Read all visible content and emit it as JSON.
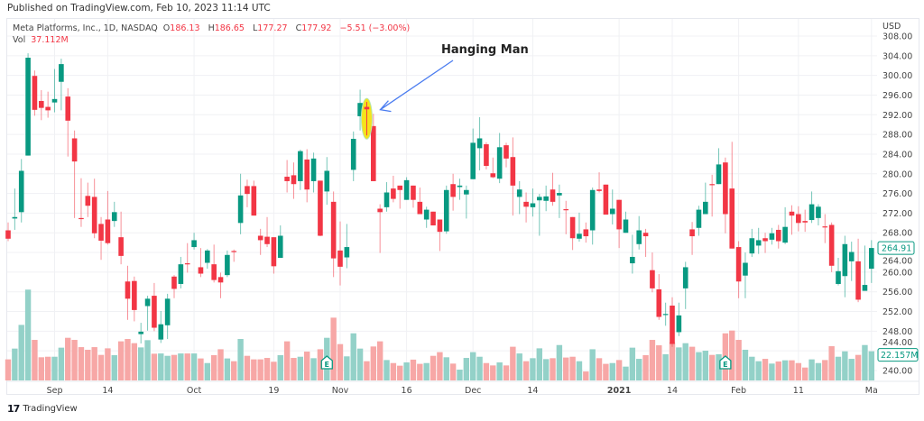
{
  "header": {
    "published": "Published on TradingView.com, Feb 10, 2023 11:14 UTC"
  },
  "legend": {
    "symbol": "Meta Platforms, Inc., 1D, NASDAQ",
    "o_label": "O",
    "o": "186.13",
    "h_label": "H",
    "h": "186.65",
    "l_label": "L",
    "l": "177.27",
    "c_label": "C",
    "c": "177.92",
    "change": "−5.51 (−3.00%)",
    "vol_label": "Vol",
    "vol": "37.112M"
  },
  "annotation": {
    "text": "Hanging Man",
    "arrow_color": "#4a7cf0",
    "highlight_color": "#f5e31a"
  },
  "footer": {
    "brand": "TradingView",
    "logo": "17"
  },
  "earnings_marker": "E",
  "colors": {
    "up": "#089981",
    "down": "#f23645",
    "vol_up": "#93d1c8",
    "vol_down": "#f7a7a6",
    "grid": "#f0f1f4"
  },
  "chart_data": {
    "type": "candlestick",
    "title": "",
    "currency": "USD",
    "ylim": [
      240,
      308
    ],
    "y_ticks": [
      "308.00",
      "304.00",
      "300.00",
      "296.00",
      "292.00",
      "288.00",
      "284.00",
      "280.00",
      "276.00",
      "272.00",
      "268.00",
      "264.00",
      "260.00",
      "256.00",
      "252.00",
      "248.00",
      "244.00",
      "240.00"
    ],
    "x_tick_labels": [
      "Sep",
      "14",
      "Oct",
      "19",
      "Nov",
      "16",
      "Dec",
      "14",
      "2021",
      "14",
      "Feb",
      "11",
      "Ma"
    ],
    "last_price_label": "264.91",
    "last_volume_label": "22.157M",
    "grid": true,
    "fields": [
      "open",
      "high",
      "low",
      "close",
      "volume_millions"
    ],
    "bars": [
      [
        268.5,
        270.1,
        266.3,
        266.8,
        16.0
      ],
      [
        270.9,
        277.0,
        268.6,
        271.2,
        24.2
      ],
      [
        272.2,
        283.0,
        270.1,
        280.6,
        42.2
      ],
      [
        283.7,
        304.5,
        283.7,
        303.6,
        69.0
      ],
      [
        299.9,
        301.0,
        291.8,
        293.0,
        30.8
      ],
      [
        294.8,
        297.0,
        290.9,
        293.4,
        17.6
      ],
      [
        293.6,
        296.7,
        291.4,
        292.9,
        18.0
      ],
      [
        294.5,
        301.3,
        292.5,
        295.2,
        18.0
      ],
      [
        298.7,
        303.4,
        292.9,
        302.3,
        24.9
      ],
      [
        295.7,
        297.4,
        283.5,
        290.8,
        32.4
      ],
      [
        287.2,
        288.8,
        271.0,
        282.5,
        30.8
      ],
      [
        271.0,
        279.1,
        269.2,
        270.9,
        25.3
      ],
      [
        275.5,
        278.2,
        271.2,
        273.5,
        23.3
      ],
      [
        275.3,
        279.0,
        266.9,
        267.9,
        25.3
      ],
      [
        269.8,
        271.2,
        262.5,
        266.4,
        19.4
      ],
      [
        270.7,
        276.5,
        265.6,
        265.9,
        24.4
      ],
      [
        270.4,
        274.3,
        269.2,
        272.2,
        19.2
      ],
      [
        267.1,
        272.3,
        261.6,
        263.3,
        29.7
      ],
      [
        258.1,
        261.3,
        250.3,
        254.6,
        31.5
      ],
      [
        258.2,
        259.1,
        250.0,
        252.3,
        28.3
      ],
      [
        247.4,
        249.7,
        245.5,
        247.9,
        25.1
      ],
      [
        253.1,
        255.2,
        248.1,
        254.6,
        30.6
      ],
      [
        255.2,
        257.8,
        248.0,
        248.7,
        20.3
      ],
      [
        246.3,
        252.1,
        245.6,
        249.4,
        20.5
      ],
      [
        249.2,
        255.6,
        246.4,
        254.6,
        18.7
      ],
      [
        259.1,
        259.4,
        254.7,
        256.6,
        19.4
      ],
      [
        257.6,
        263.1,
        256.7,
        261.6,
        20.5
      ],
      [
        261.8,
        265.9,
        259.9,
        261.7,
        20.5
      ],
      [
        265.1,
        268.0,
        264.6,
        266.5,
        20.5
      ],
      [
        261.0,
        264.9,
        259.0,
        259.7,
        16.7
      ],
      [
        261.9,
        264.7,
        260.7,
        264.4,
        13.2
      ],
      [
        261.6,
        265.6,
        257.9,
        258.4,
        19.2
      ],
      [
        259.0,
        259.9,
        254.7,
        257.9,
        23.7
      ],
      [
        259.4,
        264.4,
        259.0,
        263.5,
        16.7
      ],
      [
        264.3,
        264.6,
        262.1,
        264.2,
        14.6
      ],
      [
        270.0,
        280.0,
        267.7,
        275.6,
        31.5
      ],
      [
        277.5,
        278.8,
        273.2,
        275.9,
        18.7
      ],
      [
        277.5,
        278.6,
        271.5,
        271.5,
        16.0
      ],
      [
        267.4,
        268.8,
        263.5,
        266.5,
        16.0
      ],
      [
        267.2,
        271.2,
        265.1,
        265.7,
        17.1
      ],
      [
        267.1,
        267.1,
        259.7,
        261.2,
        14.2
      ],
      [
        262.9,
        269.5,
        262.9,
        267.4,
        19.2
      ],
      [
        279.4,
        282.8,
        276.2,
        278.5,
        29.7
      ],
      [
        279.7,
        282.3,
        274.9,
        277.9,
        17.1
      ],
      [
        278.5,
        284.9,
        276.7,
        284.6,
        18.0
      ],
      [
        282.9,
        285.0,
        274.2,
        276.8,
        21.9
      ],
      [
        278.5,
        284.3,
        276.2,
        283.1,
        16.9
      ],
      [
        278.6,
        278.6,
        267.3,
        267.4,
        23.7
      ],
      [
        276.4,
        283.4,
        273.7,
        280.6,
        32.4
      ],
      [
        274.3,
        276.4,
        259.0,
        262.8,
        47.7
      ],
      [
        264.4,
        270.3,
        257.3,
        261.1,
        27.6
      ],
      [
        263.0,
        269.8,
        260.8,
        265.1,
        18.3
      ],
      [
        280.8,
        288.6,
        278.5,
        287.1,
        35.8
      ],
      [
        291.7,
        297.1,
        288.8,
        294.4,
        24.2
      ],
      [
        293.6,
        294.6,
        287.8,
        293.1,
        14.6
      ],
      [
        289.7,
        292.2,
        278.5,
        278.5,
        25.8
      ],
      [
        272.9,
        273.8,
        263.9,
        272.2,
        29.7
      ],
      [
        273.2,
        278.3,
        272.3,
        276.2,
        15.5
      ],
      [
        277.0,
        279.6,
        274.2,
        274.9,
        13.2
      ],
      [
        277.6,
        277.6,
        272.9,
        276.7,
        11.2
      ],
      [
        274.7,
        279.3,
        274.7,
        278.7,
        13.7
      ],
      [
        277.6,
        277.6,
        273.1,
        274.7,
        15.8
      ],
      [
        274.3,
        277.2,
        271.8,
        271.8,
        12.6
      ],
      [
        270.7,
        273.3,
        269.0,
        272.7,
        13.2
      ],
      [
        272.3,
        272.3,
        269.5,
        269.5,
        18.7
      ],
      [
        270.7,
        270.7,
        264.3,
        268.2,
        21.5
      ],
      [
        268.3,
        277.6,
        267.8,
        276.7,
        17.6
      ],
      [
        277.9,
        280.0,
        272.5,
        275.3,
        12.8
      ],
      [
        277.3,
        279.0,
        274.7,
        277.6,
        8.2
      ],
      [
        275.8,
        277.6,
        270.9,
        276.7,
        17.1
      ],
      [
        278.9,
        289.2,
        278.9,
        286.3,
        21.5
      ],
      [
        285.2,
        291.5,
        280.7,
        287.2,
        18.0
      ],
      [
        286.0,
        286.4,
        280.9,
        281.6,
        13.2
      ],
      [
        280.1,
        283.3,
        279.1,
        279.3,
        11.4
      ],
      [
        279.0,
        288.3,
        278.1,
        285.4,
        13.7
      ],
      [
        285.8,
        286.3,
        281.3,
        283.1,
        11.4
      ],
      [
        283.4,
        287.4,
        271.5,
        277.6,
        25.6
      ],
      [
        275.3,
        278.5,
        271.8,
        276.8,
        20.5
      ],
      [
        274.3,
        276.2,
        270.1,
        273.3,
        14.6
      ],
      [
        273.2,
        277.0,
        271.3,
        274.0,
        16.9
      ],
      [
        274.6,
        275.9,
        267.4,
        275.3,
        24.4
      ],
      [
        274.5,
        277.6,
        272.4,
        275.4,
        16.2
      ],
      [
        276.8,
        280.2,
        273.5,
        274.3,
        16.9
      ],
      [
        275.6,
        277.8,
        271.0,
        276.1,
        26.9
      ],
      [
        272.8,
        274.5,
        267.7,
        272.6,
        17.4
      ],
      [
        271.2,
        271.2,
        264.5,
        266.9,
        18.0
      ],
      [
        266.8,
        272.1,
        266.2,
        267.8,
        14.6
      ],
      [
        268.7,
        270.1,
        266.0,
        267.3,
        6.8
      ],
      [
        268.5,
        277.2,
        265.6,
        276.7,
        23.7
      ],
      [
        276.8,
        280.3,
        276.2,
        276.5,
        16.9
      ],
      [
        277.8,
        277.8,
        271.7,
        271.7,
        12.6
      ],
      [
        271.8,
        276.8,
        269.7,
        272.9,
        13.2
      ],
      [
        274.7,
        274.7,
        264.9,
        268.7,
        15.5
      ],
      [
        268.0,
        272.3,
        268.0,
        270.7,
        10.5
      ],
      [
        261.8,
        267.6,
        259.7,
        263.1,
        24.9
      ],
      [
        265.7,
        271.4,
        264.6,
        268.5,
        16.4
      ],
      [
        268.0,
        268.8,
        263.1,
        267.3,
        19.2
      ],
      [
        260.4,
        264.0,
        255.9,
        256.7,
        30.8
      ],
      [
        256.5,
        259.6,
        250.3,
        250.9,
        26.7
      ],
      [
        251.4,
        253.8,
        249.1,
        251.5,
        19.9
      ],
      [
        253.2,
        254.9,
        244.8,
        245.4,
        29.0
      ],
      [
        247.8,
        253.8,
        247.0,
        251.2,
        25.1
      ],
      [
        256.7,
        262.1,
        252.5,
        261.0,
        28.3
      ],
      [
        268.7,
        270.2,
        263.5,
        267.3,
        25.6
      ],
      [
        269.0,
        273.5,
        267.4,
        272.7,
        21.5
      ],
      [
        271.8,
        278.2,
        271.8,
        274.3,
        22.6
      ],
      [
        277.9,
        279.8,
        271.3,
        277.8,
        19.4
      ],
      [
        277.9,
        285.2,
        277.9,
        281.9,
        19.9
      ],
      [
        282.3,
        283.3,
        267.9,
        271.8,
        35.8
      ],
      [
        277.0,
        286.5,
        264.8,
        264.8,
        37.9
      ],
      [
        265.1,
        266.3,
        254.7,
        258.1,
        30.8
      ],
      [
        259.3,
        264.0,
        254.7,
        261.9,
        23.3
      ],
      [
        263.8,
        268.8,
        263.1,
        266.9,
        18.0
      ],
      [
        265.4,
        269.0,
        263.7,
        266.5,
        14.6
      ],
      [
        266.9,
        268.0,
        263.9,
        266.3,
        16.4
      ],
      [
        266.6,
        269.0,
        265.6,
        267.9,
        12.8
      ],
      [
        268.6,
        269.6,
        264.8,
        266.3,
        14.4
      ],
      [
        266.0,
        273.2,
        265.7,
        269.2,
        15.3
      ],
      [
        272.3,
        273.6,
        267.6,
        271.5,
        15.3
      ],
      [
        271.8,
        273.4,
        268.3,
        270.0,
        13.2
      ],
      [
        270.4,
        272.7,
        268.2,
        270.1,
        9.8
      ],
      [
        270.6,
        276.4,
        270.0,
        273.8,
        16.0
      ],
      [
        271.0,
        273.8,
        269.5,
        273.3,
        13.2
      ],
      [
        269.3,
        271.8,
        265.9,
        269.2,
        15.5
      ],
      [
        269.6,
        270.1,
        260.0,
        261.3,
        26.0
      ],
      [
        257.6,
        262.9,
        257.3,
        260.2,
        18.0
      ],
      [
        259.2,
        267.4,
        254.9,
        265.7,
        22.1
      ],
      [
        262.2,
        266.2,
        258.2,
        264.1,
        16.4
      ],
      [
        262.2,
        266.8,
        253.9,
        254.4,
        19.4
      ],
      [
        256.2,
        265.4,
        256.2,
        257.4,
        26.9
      ],
      [
        260.7,
        266.5,
        257.8,
        264.91,
        22.157
      ]
    ],
    "earnings_bars": [
      49,
      109
    ],
    "annotated_bar": 55
  }
}
